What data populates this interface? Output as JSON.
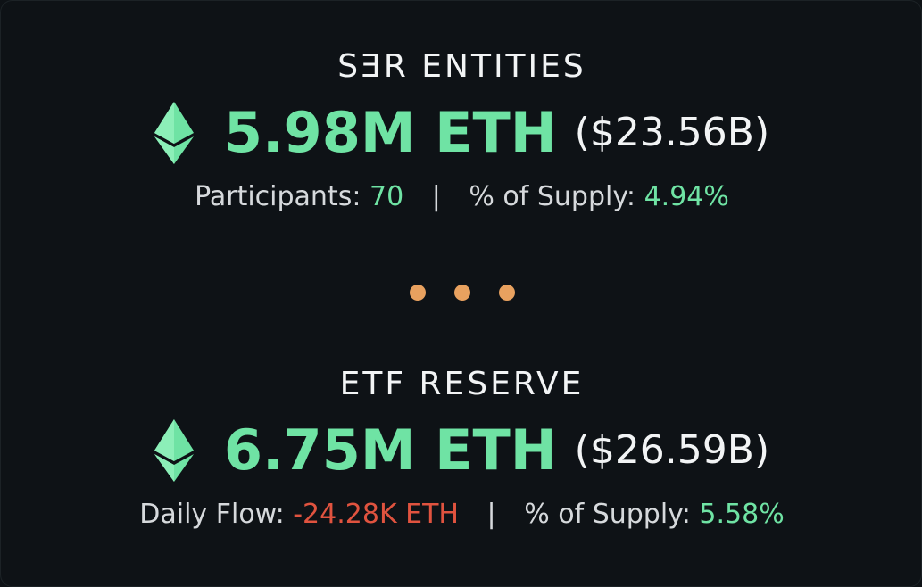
{
  "colors": {
    "background": "#0e1216",
    "accent_green": "#6fe3a4",
    "negative_red": "#e0533f",
    "dots_orange": "#e8a15f",
    "text_white": "#f2f4f5",
    "text_gray": "#d6d9dc"
  },
  "sections": [
    {
      "title": "SƎR ENTITIES",
      "icon": "ethereum-icon",
      "amount": "5.98M ETH",
      "usd": "($23.56B)",
      "stat1_label": "Participants:",
      "stat1_value": "70",
      "separator": "|",
      "stat2_label": "% of Supply:",
      "stat2_value": "4.94%"
    },
    {
      "title": "ETF RESERVE",
      "icon": "ethereum-icon",
      "amount": "6.75M ETH",
      "usd": "($26.59B)",
      "stat1_label": "Daily Flow:",
      "stat1_value": "-24.28K ETH",
      "separator": "|",
      "stat2_label": "% of Supply:",
      "stat2_value": "5.58%"
    }
  ],
  "divider_icon": "ellipsis-dots-icon"
}
